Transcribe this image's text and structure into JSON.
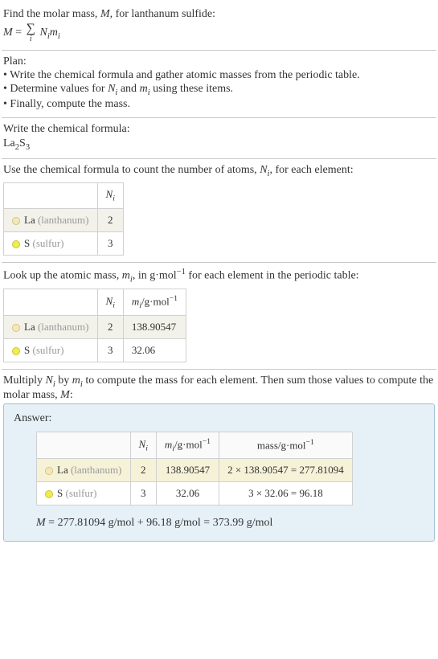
{
  "intro": {
    "line1_pre": "Find the molar mass, ",
    "line1_M": "M",
    "line1_post": ", for lanthanum sulfide:",
    "eq_lhs_M": "M",
    "eq_eq": " = ",
    "eq_N": "N",
    "eq_m": "m",
    "eq_i": "i"
  },
  "plan": {
    "header": "Plan:",
    "item1": "• Write the chemical formula and gather atomic masses from the periodic table.",
    "item2_pre": "• Determine values for ",
    "item2_N": "N",
    "item2_i": "i",
    "item2_mid": " and ",
    "item2_m": "m",
    "item2_post": " using these items.",
    "item3": "• Finally, compute the mass."
  },
  "formula": {
    "header": "Write the chemical formula:",
    "La": "La",
    "two": "2",
    "S": "S",
    "three": "3"
  },
  "count": {
    "text_pre": "Use the chemical formula to count the number of atoms, ",
    "text_N": "N",
    "text_i": "i",
    "text_post": ", for each element:",
    "header_N": "N",
    "header_i": "i",
    "la_label": "La ",
    "la_name": "(lanthanum)",
    "la_val": "2",
    "s_label": "S ",
    "s_name": "(sulfur)",
    "s_val": "3"
  },
  "lookup": {
    "text_pre": "Look up the atomic mass, ",
    "text_m": "m",
    "text_i": "i",
    "text_mid": ", in g·mol",
    "text_exp": "−1",
    "text_post": " for each element in the periodic table:",
    "hdr_N": "N",
    "hdr_i": "i",
    "hdr_m_pre": "m",
    "hdr_m_unit": "/g·mol",
    "hdr_m_exp": "−1",
    "la_label": "La ",
    "la_name": "(lanthanum)",
    "la_n": "2",
    "la_m": "138.90547",
    "s_label": "S ",
    "s_name": "(sulfur)",
    "s_n": "3",
    "s_m": "32.06"
  },
  "multiply": {
    "text_pre": "Multiply ",
    "N": "N",
    "i1": "i",
    "by": " by ",
    "m": "m",
    "i2": "i",
    "mid": " to compute the mass for each element. Then sum those values to compute the molar mass, ",
    "M": "M",
    "post": ":"
  },
  "answer": {
    "label": "Answer:",
    "hdr_N": "N",
    "hdr_i": "i",
    "hdr_m": "m",
    "hdr_m_unit": "/g·mol",
    "hdr_exp": "−1",
    "hdr_mass": "mass/g·mol",
    "la_label": "La ",
    "la_name": "(lanthanum)",
    "la_n": "2",
    "la_m": "138.90547",
    "la_mass": "2 × 138.90547 = 277.81094",
    "s_label": "S ",
    "s_name": "(sulfur)",
    "s_n": "3",
    "s_m": "32.06",
    "s_mass": "3 × 32.06 = 96.18",
    "final_M": "M",
    "final_eq": " = 277.81094 g/mol + 96.18 g/mol = 373.99 g/mol"
  }
}
